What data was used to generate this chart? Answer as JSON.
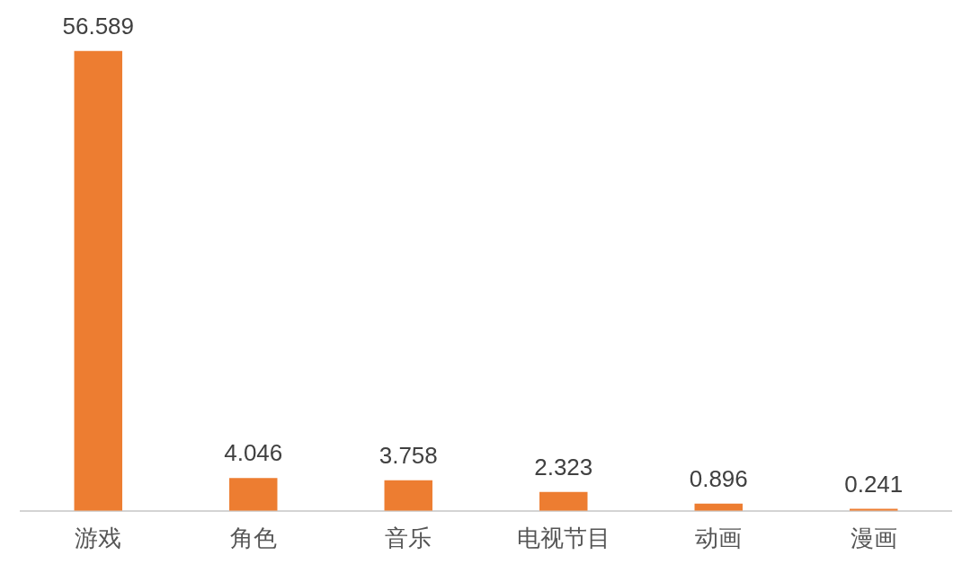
{
  "chart_data": {
    "type": "bar",
    "categories": [
      "游戏",
      "角色",
      "音乐",
      "电视节目",
      "动画",
      "漫画"
    ],
    "values": [
      56.589,
      4.046,
      3.758,
      2.323,
      0.896,
      0.241
    ],
    "color": "#ed7d31",
    "data_labels": true
  }
}
